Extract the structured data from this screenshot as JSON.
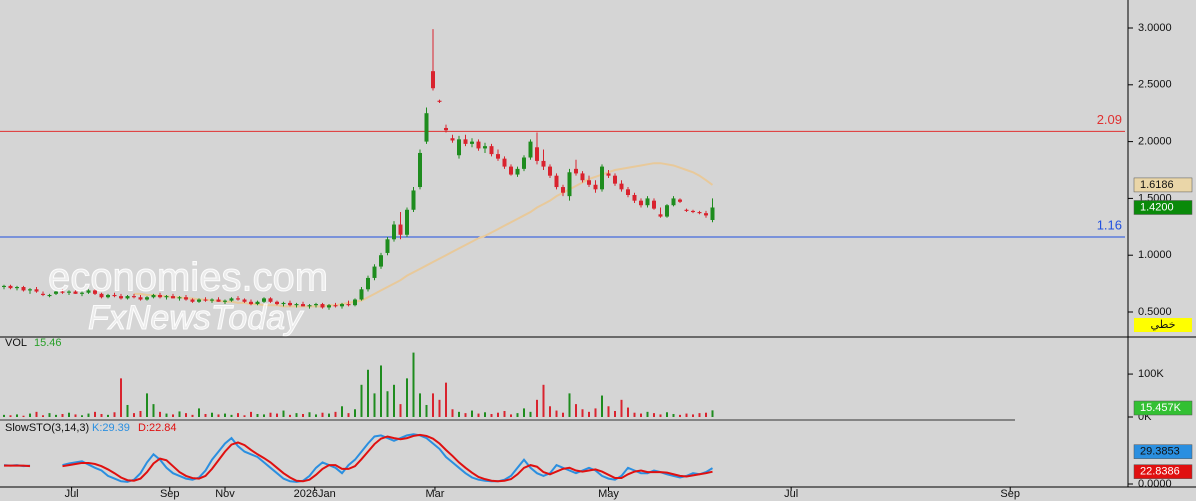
{
  "watermark": {
    "line1": "economies.com",
    "line2": "FxNewsToday"
  },
  "chart_data": [
    {
      "type": "candlestick",
      "up_color": "#1e8c1e",
      "down_color": "#d9232e",
      "ylim": [
        0.28,
        3.2465
      ],
      "yticks": [
        {
          "value": 0.5,
          "label": "0.5000"
        },
        {
          "value": 1,
          "label": "1.0000"
        },
        {
          "value": 1.5,
          "label": "1.5000"
        },
        {
          "value": 2,
          "label": "2.0000"
        },
        {
          "value": 2.5,
          "label": "2.5000"
        },
        {
          "value": 3,
          "label": "3.0000"
        }
      ],
      "xticks": [
        {
          "value": 10.4,
          "label": "Jul"
        },
        {
          "value": 25.5,
          "label": "Sep"
        },
        {
          "value": 34,
          "label": "Nov"
        },
        {
          "value": 47.8,
          "label": "2026Jan"
        },
        {
          "value": 66.3,
          "label": "Mar"
        },
        {
          "value": 93,
          "label": "May"
        },
        {
          "value": 121.1,
          "label": "Jul"
        },
        {
          "value": 154.8,
          "label": "Sep"
        }
      ],
      "ohlc": [
        [
          0.72,
          0.74,
          0.7,
          0.73
        ],
        [
          0.73,
          0.74,
          0.7,
          0.71
        ],
        [
          0.71,
          0.73,
          0.69,
          0.72
        ],
        [
          0.72,
          0.73,
          0.68,
          0.69
        ],
        [
          0.69,
          0.71,
          0.66,
          0.7
        ],
        [
          0.7,
          0.72,
          0.67,
          0.68
        ],
        [
          0.66,
          0.68,
          0.64,
          0.65
        ],
        [
          0.64,
          0.66,
          0.63,
          0.65
        ],
        [
          0.66,
          0.69,
          0.65,
          0.68
        ],
        [
          0.68,
          0.7,
          0.66,
          0.67
        ],
        [
          0.67,
          0.69,
          0.65,
          0.68
        ],
        [
          0.68,
          0.69,
          0.66,
          0.66
        ],
        [
          0.66,
          0.68,
          0.64,
          0.67
        ],
        [
          0.67,
          0.7,
          0.66,
          0.69
        ],
        [
          0.69,
          0.7,
          0.65,
          0.66
        ],
        [
          0.66,
          0.67,
          0.62,
          0.63
        ],
        [
          0.63,
          0.66,
          0.62,
          0.65
        ],
        [
          0.65,
          0.67,
          0.63,
          0.64
        ],
        [
          0.64,
          0.66,
          0.61,
          0.62
        ],
        [
          0.62,
          0.65,
          0.61,
          0.64
        ],
        [
          0.64,
          0.66,
          0.62,
          0.63
        ],
        [
          0.63,
          0.65,
          0.6,
          0.61
        ],
        [
          0.61,
          0.64,
          0.6,
          0.63
        ],
        [
          0.63,
          0.66,
          0.62,
          0.65
        ],
        [
          0.65,
          0.67,
          0.62,
          0.63
        ],
        [
          0.63,
          0.65,
          0.61,
          0.64
        ],
        [
          0.64,
          0.66,
          0.62,
          0.62
        ],
        [
          0.62,
          0.64,
          0.6,
          0.63
        ],
        [
          0.63,
          0.65,
          0.6,
          0.61
        ],
        [
          0.61,
          0.62,
          0.58,
          0.59
        ],
        [
          0.59,
          0.62,
          0.58,
          0.61
        ],
        [
          0.61,
          0.63,
          0.59,
          0.6
        ],
        [
          0.6,
          0.62,
          0.58,
          0.61
        ],
        [
          0.61,
          0.63,
          0.59,
          0.59
        ],
        [
          0.59,
          0.61,
          0.57,
          0.6
        ],
        [
          0.6,
          0.63,
          0.59,
          0.62
        ],
        [
          0.62,
          0.64,
          0.6,
          0.61
        ],
        [
          0.61,
          0.62,
          0.58,
          0.59
        ],
        [
          0.59,
          0.61,
          0.56,
          0.57
        ],
        [
          0.57,
          0.6,
          0.56,
          0.59
        ],
        [
          0.59,
          0.63,
          0.58,
          0.62
        ],
        [
          0.62,
          0.63,
          0.58,
          0.59
        ],
        [
          0.59,
          0.6,
          0.56,
          0.57
        ],
        [
          0.57,
          0.59,
          0.55,
          0.58
        ],
        [
          0.58,
          0.6,
          0.55,
          0.56
        ],
        [
          0.56,
          0.58,
          0.54,
          0.57
        ],
        [
          0.57,
          0.59,
          0.55,
          0.55
        ],
        [
          0.55,
          0.57,
          0.53,
          0.56
        ],
        [
          0.56,
          0.58,
          0.54,
          0.57
        ],
        [
          0.57,
          0.58,
          0.53,
          0.54
        ],
        [
          0.54,
          0.57,
          0.52,
          0.56
        ],
        [
          0.56,
          0.58,
          0.54,
          0.55
        ],
        [
          0.55,
          0.58,
          0.53,
          0.57
        ],
        [
          0.57,
          0.6,
          0.55,
          0.56
        ],
        [
          0.56,
          0.62,
          0.55,
          0.61
        ],
        [
          0.61,
          0.72,
          0.6,
          0.7
        ],
        [
          0.7,
          0.82,
          0.68,
          0.8
        ],
        [
          0.8,
          0.92,
          0.78,
          0.9
        ],
        [
          0.9,
          1.02,
          0.88,
          1.0
        ],
        [
          1.02,
          1.16,
          1.0,
          1.14
        ],
        [
          1.14,
          1.3,
          1.12,
          1.27
        ],
        [
          1.27,
          1.38,
          1.14,
          1.18
        ],
        [
          1.18,
          1.42,
          1.16,
          1.4
        ],
        [
          1.4,
          1.6,
          1.38,
          1.57
        ],
        [
          1.6,
          1.93,
          1.58,
          1.9
        ],
        [
          2.0,
          2.3,
          1.98,
          2.25
        ],
        [
          2.62,
          2.99,
          2.45,
          2.47
        ],
        [
          2.36,
          2.37,
          2.34,
          2.35
        ],
        [
          2.12,
          2.15,
          2.08,
          2.1
        ],
        [
          2.03,
          2.06,
          1.99,
          2.01
        ],
        [
          1.88,
          2.05,
          1.85,
          2.02
        ],
        [
          2.02,
          2.06,
          1.96,
          1.98
        ],
        [
          1.98,
          2.03,
          1.95,
          2.0
        ],
        [
          2.0,
          2.02,
          1.92,
          1.94
        ],
        [
          1.94,
          1.99,
          1.9,
          1.96
        ],
        [
          1.96,
          1.98,
          1.87,
          1.89
        ],
        [
          1.89,
          1.93,
          1.83,
          1.85
        ],
        [
          1.85,
          1.87,
          1.76,
          1.78
        ],
        [
          1.78,
          1.8,
          1.7,
          1.71
        ],
        [
          1.71,
          1.78,
          1.69,
          1.76
        ],
        [
          1.76,
          1.88,
          1.74,
          1.86
        ],
        [
          1.86,
          2.02,
          1.84,
          2.0
        ],
        [
          1.95,
          2.08,
          1.8,
          1.83
        ],
        [
          1.83,
          1.93,
          1.75,
          1.78
        ],
        [
          1.78,
          1.8,
          1.68,
          1.7
        ],
        [
          1.7,
          1.72,
          1.58,
          1.6
        ],
        [
          1.6,
          1.62,
          1.52,
          1.55
        ],
        [
          1.52,
          1.76,
          1.48,
          1.73
        ],
        [
          1.76,
          1.84,
          1.7,
          1.72
        ],
        [
          1.72,
          1.74,
          1.64,
          1.66
        ],
        [
          1.66,
          1.7,
          1.6,
          1.62
        ],
        [
          1.62,
          1.66,
          1.55,
          1.58
        ],
        [
          1.58,
          1.8,
          1.56,
          1.78
        ],
        [
          1.72,
          1.75,
          1.68,
          1.7
        ],
        [
          1.7,
          1.72,
          1.61,
          1.63
        ],
        [
          1.63,
          1.66,
          1.56,
          1.58
        ],
        [
          1.58,
          1.6,
          1.51,
          1.53
        ],
        [
          1.53,
          1.55,
          1.46,
          1.48
        ],
        [
          1.48,
          1.5,
          1.42,
          1.44
        ],
        [
          1.44,
          1.52,
          1.42,
          1.5
        ],
        [
          1.48,
          1.5,
          1.4,
          1.41
        ],
        [
          1.36,
          1.42,
          1.33,
          1.34
        ],
        [
          1.34,
          1.45,
          1.33,
          1.44
        ],
        [
          1.44,
          1.52,
          1.43,
          1.5
        ],
        [
          1.49,
          1.5,
          1.46,
          1.47
        ],
        [
          1.4,
          1.41,
          1.38,
          1.39
        ],
        [
          1.39,
          1.4,
          1.37,
          1.38
        ],
        [
          1.38,
          1.39,
          1.36,
          1.37
        ],
        [
          1.37,
          1.39,
          1.33,
          1.35
        ],
        [
          1.31,
          1.5,
          1.29,
          1.42
        ]
      ],
      "last_label": "1.4200",
      "last_color": "#0a8a0a",
      "ma": {
        "color": "#e8c99a",
        "values": [
          null,
          null,
          null,
          null,
          null,
          null,
          null,
          null,
          null,
          null,
          null,
          null,
          null,
          null,
          null,
          null,
          null,
          null,
          null,
          null,
          0.66,
          0.66,
          0.65,
          0.65,
          0.64,
          0.64,
          0.63,
          0.63,
          0.62,
          0.62,
          0.61,
          0.61,
          0.6,
          0.6,
          0.59,
          0.59,
          0.58,
          0.58,
          0.57,
          0.57,
          0.56,
          0.56,
          0.56,
          0.55,
          0.55,
          0.55,
          0.55,
          0.55,
          0.55,
          0.55,
          0.56,
          0.56,
          0.57,
          0.58,
          0.59,
          0.6,
          0.63,
          0.66,
          0.69,
          0.72,
          0.75,
          0.78,
          0.82,
          0.85,
          0.88,
          0.91,
          0.94,
          0.97,
          1.0,
          1.03,
          1.06,
          1.09,
          1.12,
          1.15,
          1.17,
          1.2,
          1.23,
          1.26,
          1.29,
          1.32,
          1.35,
          1.38,
          1.42,
          1.45,
          1.48,
          1.52,
          1.55,
          1.58,
          1.61,
          1.64,
          1.67,
          1.69,
          1.71,
          1.73,
          1.75,
          1.76,
          1.77,
          1.78,
          1.79,
          1.8,
          1.81,
          1.81,
          1.8,
          1.79,
          1.77,
          1.75,
          1.73,
          1.7,
          1.66,
          1.6186
        ]
      },
      "levels": [
        {
          "value": 2.09,
          "color": "#e03030"
        },
        {
          "value": 1.16,
          "color": "#2050e0"
        }
      ],
      "style_label": "خطي"
    },
    {
      "type": "bar",
      "title": "VOL",
      "header_value": "15.46",
      "ylim": [
        0,
        184000
      ],
      "yticks": [
        {
          "value": 0,
          "label": "0K"
        },
        {
          "value": 100000,
          "label": "100K"
        }
      ],
      "values": [
        5000,
        4000,
        6000,
        3000,
        8000,
        12000,
        4000,
        9000,
        5000,
        7000,
        10000,
        6000,
        4000,
        8000,
        12000,
        7000,
        5000,
        11000,
        90000,
        28000,
        9000,
        14000,
        55000,
        30000,
        12000,
        8000,
        6000,
        13000,
        9000,
        5000,
        20000,
        7000,
        10000,
        6000,
        8000,
        5000,
        9000,
        4000,
        12000,
        7000,
        6000,
        10000,
        8000,
        15000,
        5000,
        9000,
        7000,
        11000,
        6000,
        10000,
        8000,
        12000,
        25000,
        9000,
        18000,
        75000,
        110000,
        55000,
        120000,
        60000,
        75000,
        30000,
        90000,
        150000,
        55000,
        28000,
        55000,
        40000,
        80000,
        18000,
        12000,
        9000,
        15000,
        8000,
        11000,
        7000,
        10000,
        14000,
        6000,
        9000,
        20000,
        12000,
        40000,
        75000,
        25000,
        15000,
        10000,
        55000,
        30000,
        18000,
        12000,
        20000,
        50000,
        25000,
        14000,
        40000,
        22000,
        10000,
        8000,
        12000,
        9000,
        6000,
        11000,
        7000,
        5000,
        8000,
        6000,
        9000,
        10000,
        15457
      ],
      "last_label": "15.457K",
      "last_color": "#33c033"
    },
    {
      "type": "line",
      "title": "SlowSTO(3,14,3)",
      "ylim": [
        0,
        100
      ],
      "yticks": [
        {
          "value": 0,
          "label": "0.0000"
        }
      ],
      "series": [
        {
          "name": "K:29.39",
          "color": "#2a8fe0",
          "values": [
            35,
            34,
            35,
            33,
            34,
            null,
            null,
            null,
            null,
            35,
            38,
            40,
            42,
            36,
            30,
            25,
            15,
            10,
            5,
            4,
            8,
            20,
            40,
            55,
            45,
            30,
            20,
            15,
            10,
            8,
            12,
            25,
            45,
            60,
            75,
            85,
            70,
            60,
            55,
            50,
            40,
            30,
            20,
            10,
            5,
            4,
            6,
            15,
            30,
            40,
            35,
            30,
            20,
            35,
            45,
            60,
            75,
            88,
            90,
            85,
            80,
            85,
            90,
            92,
            90,
            85,
            75,
            65,
            50,
            40,
            30,
            20,
            12,
            8,
            6,
            5,
            5,
            8,
            15,
            30,
            45,
            30,
            20,
            15,
            20,
            35,
            30,
            25,
            20,
            25,
            30,
            25,
            15,
            10,
            8,
            15,
            30,
            25,
            20,
            20,
            25,
            22,
            18,
            15,
            12,
            15,
            20,
            18,
            22,
            29.3853
          ]
        },
        {
          "name": "D:22.84",
          "color": "#e01010",
          "values": [
            34,
            34,
            34,
            34,
            33,
            null,
            null,
            null,
            null,
            33,
            35,
            37,
            39,
            39,
            37,
            33,
            27,
            20,
            12,
            7,
            6,
            10,
            22,
            38,
            47,
            44,
            33,
            22,
            15,
            11,
            10,
            15,
            28,
            44,
            60,
            73,
            77,
            72,
            63,
            55,
            48,
            40,
            30,
            20,
            12,
            6,
            5,
            8,
            17,
            28,
            35,
            35,
            28,
            28,
            33,
            46,
            60,
            74,
            84,
            88,
            85,
            83,
            85,
            89,
            91,
            89,
            84,
            75,
            63,
            52,
            40,
            30,
            21,
            13,
            9,
            6,
            5,
            6,
            9,
            18,
            30,
            35,
            32,
            22,
            18,
            23,
            28,
            30,
            25,
            23,
            25,
            27,
            23,
            17,
            11,
            11,
            18,
            23,
            25,
            22,
            22,
            22,
            21,
            18,
            15,
            14,
            16,
            18,
            20,
            22.8386
          ]
        }
      ]
    }
  ]
}
